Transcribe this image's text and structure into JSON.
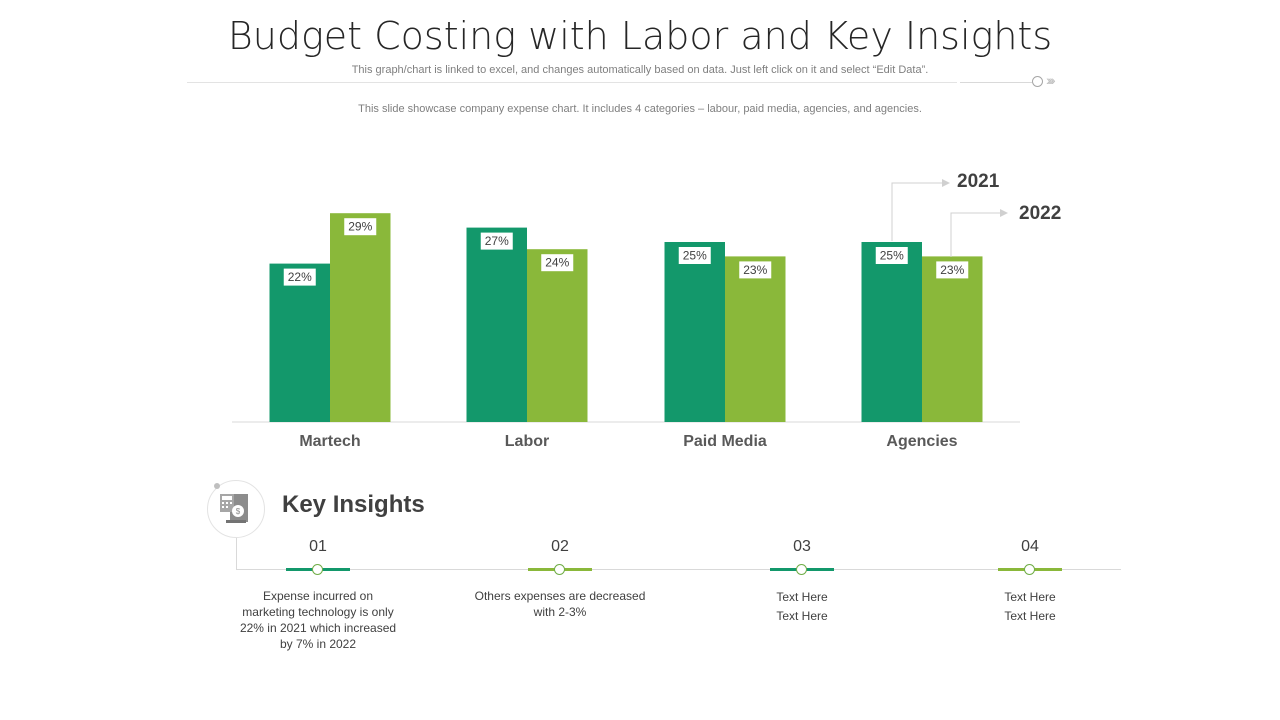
{
  "header": {
    "title": "Budget Costing with Labor and Key Insights",
    "subtitle": "This graph/chart is linked to excel,  and changes automatically based on data. Just left click on it and select “Edit Data”.",
    "description": "This slide showcase company expense chart. It includes 4 categories – labour, paid media, agencies, and agencies."
  },
  "colors": {
    "series_2021": "#13986b",
    "series_2022": "#8ab83a",
    "axis": "#d9d9d9",
    "text_dark": "#404040"
  },
  "chart_data": {
    "type": "bar",
    "title": "",
    "xlabel": "",
    "ylabel": "",
    "categories": [
      "Martech",
      "Labor",
      "Paid Media",
      "Agencies"
    ],
    "series": [
      {
        "name": "2021",
        "values": [
          22,
          27,
          25,
          25
        ],
        "labels": [
          "22%",
          "27%",
          "25%",
          "25%"
        ]
      },
      {
        "name": "2022",
        "values": [
          29,
          24,
          23,
          23
        ],
        "labels": [
          "29%",
          "24%",
          "23%",
          "23%"
        ]
      }
    ],
    "ylim": [
      0,
      30
    ],
    "grid": false,
    "legend": "top-right (callout arrows from Agencies bars)"
  },
  "key_insights": {
    "title": "Key Insights",
    "icon": "budget-calculator-icon",
    "items": [
      {
        "num": "01",
        "text": [
          "Expense incurred on",
          "marketing technology is only",
          "22% in 2021 which increased",
          "by 7% in 2022"
        ],
        "accent": "#13986b"
      },
      {
        "num": "02",
        "text": [
          "Others expenses are decreased",
          "with 2-3%"
        ],
        "accent": "#8ab83a"
      },
      {
        "num": "03",
        "text": [
          "Text Here",
          "Text Here"
        ],
        "accent": "#13986b"
      },
      {
        "num": "04",
        "text": [
          "Text Here",
          "Text Here"
        ],
        "accent": "#8ab83a"
      }
    ]
  }
}
